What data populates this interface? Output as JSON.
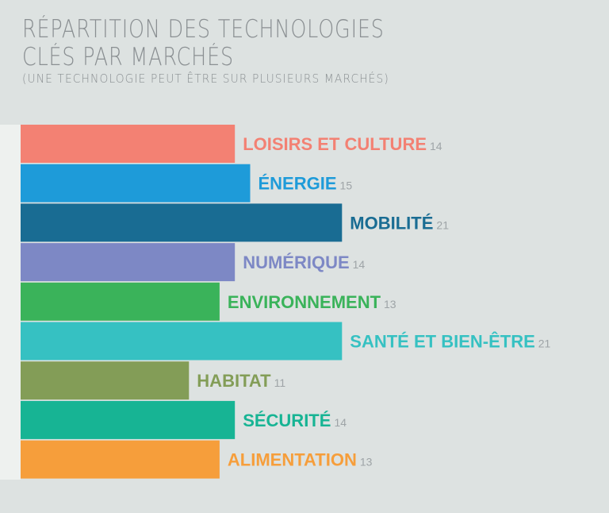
{
  "title": {
    "line1": "Répartition des technologies",
    "line2": "clés par marchés",
    "subtitle": "(une technologie peut être sur plusieurs marchés)"
  },
  "chart_data": {
    "type": "bar",
    "orientation": "horizontal",
    "title": "Répartition des technologies clés par marchés",
    "subtitle": "(une technologie peut être sur plusieurs marchés)",
    "categories": [
      "LOISIRS ET CULTURE",
      "ÉNERGIE",
      "MOBILITÉ",
      "NUMÉRIQUE",
      "ENVIRONNEMENT",
      "SANTÉ ET BIEN-ÊTRE",
      "HABITAT",
      "SÉCURITÉ",
      "ALIMENTATION"
    ],
    "values": [
      14,
      15,
      21,
      14,
      13,
      21,
      11,
      14,
      13
    ],
    "colors": [
      "#f38173",
      "#1e9bd9",
      "#196c93",
      "#7d88c5",
      "#3ab35a",
      "#36c1c2",
      "#839d57",
      "#17b494",
      "#f69e3b"
    ],
    "xlim": [
      0,
      21
    ],
    "xlabel": "",
    "ylabel": "",
    "grid": false,
    "legend": "none"
  }
}
